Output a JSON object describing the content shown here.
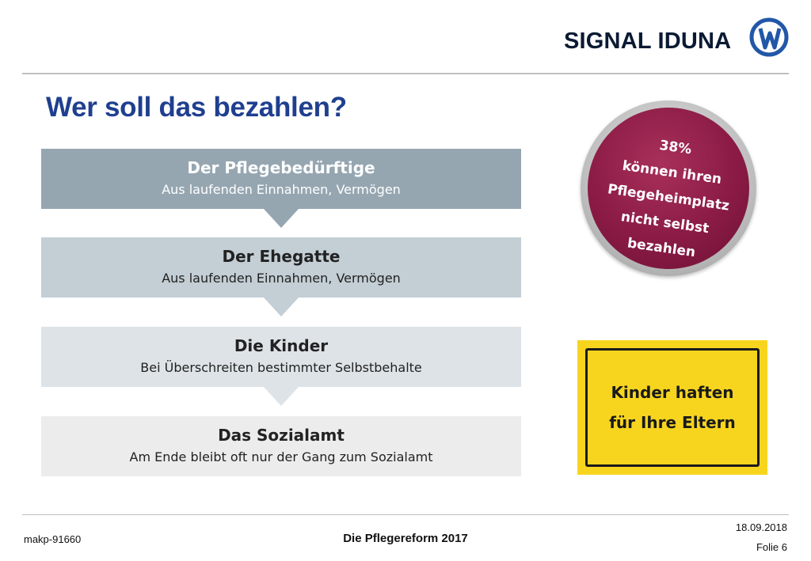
{
  "brand": {
    "name": "SIGNAL IDUNA"
  },
  "title": "Wer soll das bezahlen?",
  "steps": [
    {
      "heading": "Der Pflegebedürftige",
      "sub": "Aus laufenden Einnahmen, Vermögen",
      "bg": "#95a6b1",
      "fg": "#ffffff"
    },
    {
      "heading": "Der Ehegatte",
      "sub": "Aus laufenden Einnahmen, Vermögen",
      "bg": "#c3ced5",
      "fg": "#222222"
    },
    {
      "heading": "Die Kinder",
      "sub": "Bei Überschreiten bestimmter Selbstbehalte",
      "bg": "#dde3e7",
      "fg": "#222222"
    },
    {
      "heading": "Das Sozialamt",
      "sub": "Am Ende bleibt oft nur der Gang zum Sozialamt",
      "bg": "#ececec",
      "fg": "#222222"
    }
  ],
  "badge": {
    "lines": [
      "38%",
      "können ihren",
      "Pflegeheimplatz",
      "nicht selbst",
      "bezahlen"
    ],
    "color": "#8a1b45"
  },
  "sign": {
    "lines": [
      "Kinder haften",
      "für Ihre Eltern"
    ],
    "color": "#f7d51f"
  },
  "footer": {
    "code": "makp-91660",
    "title": "Die Pflegereform 2017",
    "date": "18.09.2018",
    "slide": "Folie 6"
  }
}
